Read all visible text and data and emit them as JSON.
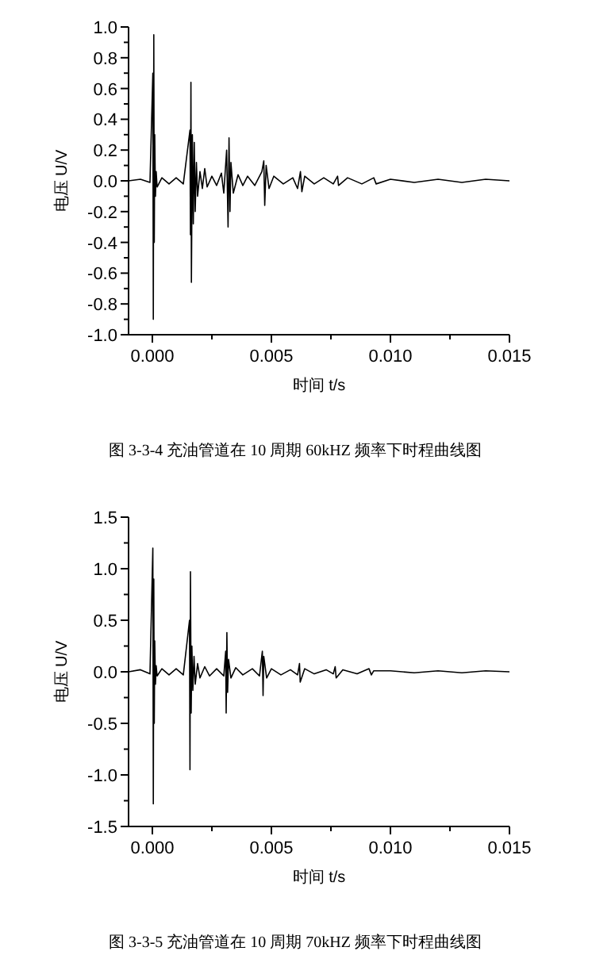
{
  "chart_data": [
    {
      "type": "line",
      "xlabel": "时间  t/s",
      "ylabel": "电压  U/V",
      "annotations": [
        "图 3-3-4  充油管道在 10 周期 60kHZ 频率下时程曲线图"
      ],
      "xlim": [
        -0.001,
        0.015
      ],
      "ylim": [
        -1.0,
        1.0
      ],
      "xticks": [
        {
          "value": 0,
          "label": "0.000"
        },
        {
          "value": 0.0025,
          "label": null
        },
        {
          "value": 0.005,
          "label": "0.005"
        },
        {
          "value": 0.0075,
          "label": null
        },
        {
          "value": 0.01,
          "label": "0.010"
        },
        {
          "value": 0.0125,
          "label": null
        },
        {
          "value": 0.015,
          "label": "0.015"
        }
      ],
      "yticks": [
        {
          "value": -1.0,
          "label": "-1.0"
        },
        {
          "value": -0.9,
          "label": null
        },
        {
          "value": -0.8,
          "label": "-0.8"
        },
        {
          "value": -0.7,
          "label": null
        },
        {
          "value": -0.6,
          "label": "-0.6"
        },
        {
          "value": -0.5,
          "label": null
        },
        {
          "value": -0.4,
          "label": "-0.4"
        },
        {
          "value": -0.3,
          "label": null
        },
        {
          "value": -0.2,
          "label": "-0.2"
        },
        {
          "value": -0.1,
          "label": null
        },
        {
          "value": 0,
          "label": "0.0"
        },
        {
          "value": 0.1,
          "label": null
        },
        {
          "value": 0.2,
          "label": "0.2"
        },
        {
          "value": 0.3,
          "label": null
        },
        {
          "value": 0.4,
          "label": "0.4"
        },
        {
          "value": 0.5,
          "label": null
        },
        {
          "value": 0.6,
          "label": "0.6"
        },
        {
          "value": 0.7,
          "label": null
        },
        {
          "value": 0.8,
          "label": "0.8"
        },
        {
          "value": 0.9,
          "label": null
        },
        {
          "value": 1.0,
          "label": "1.0"
        }
      ],
      "grid": false,
      "series": [
        {
          "color": "#000000",
          "x": [
            -0.001,
            -0.0005,
            -0.0001,
            2e-05,
            4e-05,
            6e-05,
            8e-05,
            0.0001,
            0.00013,
            0.00016,
            0.0002,
            0.0004,
            0.0007,
            0.001,
            0.0013,
            0.00158,
            0.0016,
            0.00162,
            0.00164,
            0.00168,
            0.00172,
            0.00176,
            0.0018,
            0.00185,
            0.0019,
            0.002,
            0.0021,
            0.0022,
            0.0023,
            0.0025,
            0.0027,
            0.0029,
            0.003,
            0.00312,
            0.00318,
            0.00322,
            0.00326,
            0.0033,
            0.0034,
            0.0036,
            0.0038,
            0.004,
            0.0043,
            0.0046,
            0.00468,
            0.00472,
            0.00478,
            0.0049,
            0.0051,
            0.0055,
            0.0059,
            0.0061,
            0.00622,
            0.00628,
            0.0064,
            0.0068,
            0.0072,
            0.0076,
            0.00778,
            0.00782,
            0.0082,
            0.0088,
            0.0093,
            0.0094,
            0.01,
            0.011,
            0.012,
            0.013,
            0.014,
            0.015
          ],
          "values": [
            0,
            0.01,
            -0.01,
            0.7,
            -0.9,
            0.95,
            -0.4,
            0.3,
            -0.1,
            0.06,
            -0.04,
            0.02,
            -0.02,
            0.02,
            -0.02,
            0.33,
            -0.35,
            0.64,
            -0.66,
            0.3,
            -0.28,
            0.25,
            -0.2,
            0.12,
            -0.1,
            0.06,
            -0.05,
            0.08,
            -0.04,
            0.03,
            -0.03,
            0.05,
            -0.08,
            0.2,
            -0.3,
            0.28,
            -0.2,
            0.12,
            -0.08,
            0.04,
            -0.03,
            0.03,
            -0.03,
            0.06,
            0.13,
            -0.16,
            0.1,
            -0.05,
            0.03,
            -0.02,
            0.02,
            -0.05,
            0.06,
            -0.07,
            0.03,
            -0.02,
            0.02,
            -0.02,
            0.03,
            -0.03,
            0.02,
            -0.02,
            0.02,
            -0.02,
            0.01,
            -0.01,
            0.01,
            -0.01,
            0.01,
            0
          ]
        }
      ]
    },
    {
      "type": "line",
      "xlabel": "时间  t/s",
      "ylabel": "电压  U/V",
      "annotations": [
        "图 3-3-5  充油管道在 10 周期 70kHZ 频率下时程曲线图"
      ],
      "xlim": [
        -0.001,
        0.015
      ],
      "ylim": [
        -1.5,
        1.5
      ],
      "xticks": [
        {
          "value": 0,
          "label": "0.000"
        },
        {
          "value": 0.0025,
          "label": null
        },
        {
          "value": 0.005,
          "label": "0.005"
        },
        {
          "value": 0.0075,
          "label": null
        },
        {
          "value": 0.01,
          "label": "0.010"
        },
        {
          "value": 0.0125,
          "label": null
        },
        {
          "value": 0.015,
          "label": "0.015"
        }
      ],
      "yticks": [
        {
          "value": -1.5,
          "label": "-1.5"
        },
        {
          "value": -1.25,
          "label": null
        },
        {
          "value": -1.0,
          "label": "-1.0"
        },
        {
          "value": -0.75,
          "label": null
        },
        {
          "value": -0.5,
          "label": "-0.5"
        },
        {
          "value": -0.25,
          "label": null
        },
        {
          "value": 0,
          "label": "0.0"
        },
        {
          "value": 0.25,
          "label": null
        },
        {
          "value": 0.5,
          "label": "0.5"
        },
        {
          "value": 0.75,
          "label": null
        },
        {
          "value": 1.0,
          "label": "1.0"
        },
        {
          "value": 1.25,
          "label": null
        },
        {
          "value": 1.5,
          "label": "1.5"
        }
      ],
      "grid": false,
      "series": [
        {
          "color": "#000000",
          "x": [
            -0.001,
            -0.0005,
            -0.0001,
            2e-05,
            4e-05,
            6e-05,
            8e-05,
            0.0001,
            0.00013,
            0.00016,
            0.0002,
            0.0004,
            0.0007,
            0.001,
            0.0013,
            0.00156,
            0.00158,
            0.0016,
            0.00163,
            0.00166,
            0.0017,
            0.00175,
            0.0018,
            0.0019,
            0.002,
            0.0022,
            0.0024,
            0.0027,
            0.003,
            0.00308,
            0.0031,
            0.00313,
            0.00316,
            0.0032,
            0.0033,
            0.0035,
            0.0038,
            0.0042,
            0.0045,
            0.00462,
            0.00465,
            0.00468,
            0.0048,
            0.005,
            0.0054,
            0.0058,
            0.0061,
            0.00618,
            0.00621,
            0.0064,
            0.0068,
            0.0073,
            0.0076,
            0.00768,
            0.00772,
            0.008,
            0.0086,
            0.0091,
            0.0092,
            0.0093,
            0.01,
            0.011,
            0.012,
            0.013,
            0.014,
            0.015
          ],
          "values": [
            0,
            0.02,
            -0.02,
            1.2,
            -1.28,
            0.9,
            -0.5,
            0.3,
            -0.12,
            0.06,
            -0.04,
            0.03,
            -0.03,
            0.03,
            -0.03,
            0.5,
            -0.95,
            0.97,
            -0.4,
            0.25,
            -0.18,
            0.15,
            -0.12,
            0.08,
            -0.06,
            0.05,
            -0.04,
            0.03,
            -0.04,
            0.2,
            -0.4,
            0.38,
            -0.2,
            0.12,
            -0.06,
            0.04,
            -0.03,
            0.03,
            -0.04,
            0.2,
            -0.23,
            0.15,
            -0.06,
            0.03,
            -0.03,
            0.02,
            -0.03,
            0.08,
            -0.1,
            0.03,
            -0.02,
            0.02,
            -0.02,
            0.05,
            -0.06,
            0.02,
            -0.02,
            0.03,
            -0.03,
            0.01,
            0.01,
            -0.01,
            0.01,
            -0.01,
            0.01,
            0
          ]
        }
      ]
    }
  ]
}
